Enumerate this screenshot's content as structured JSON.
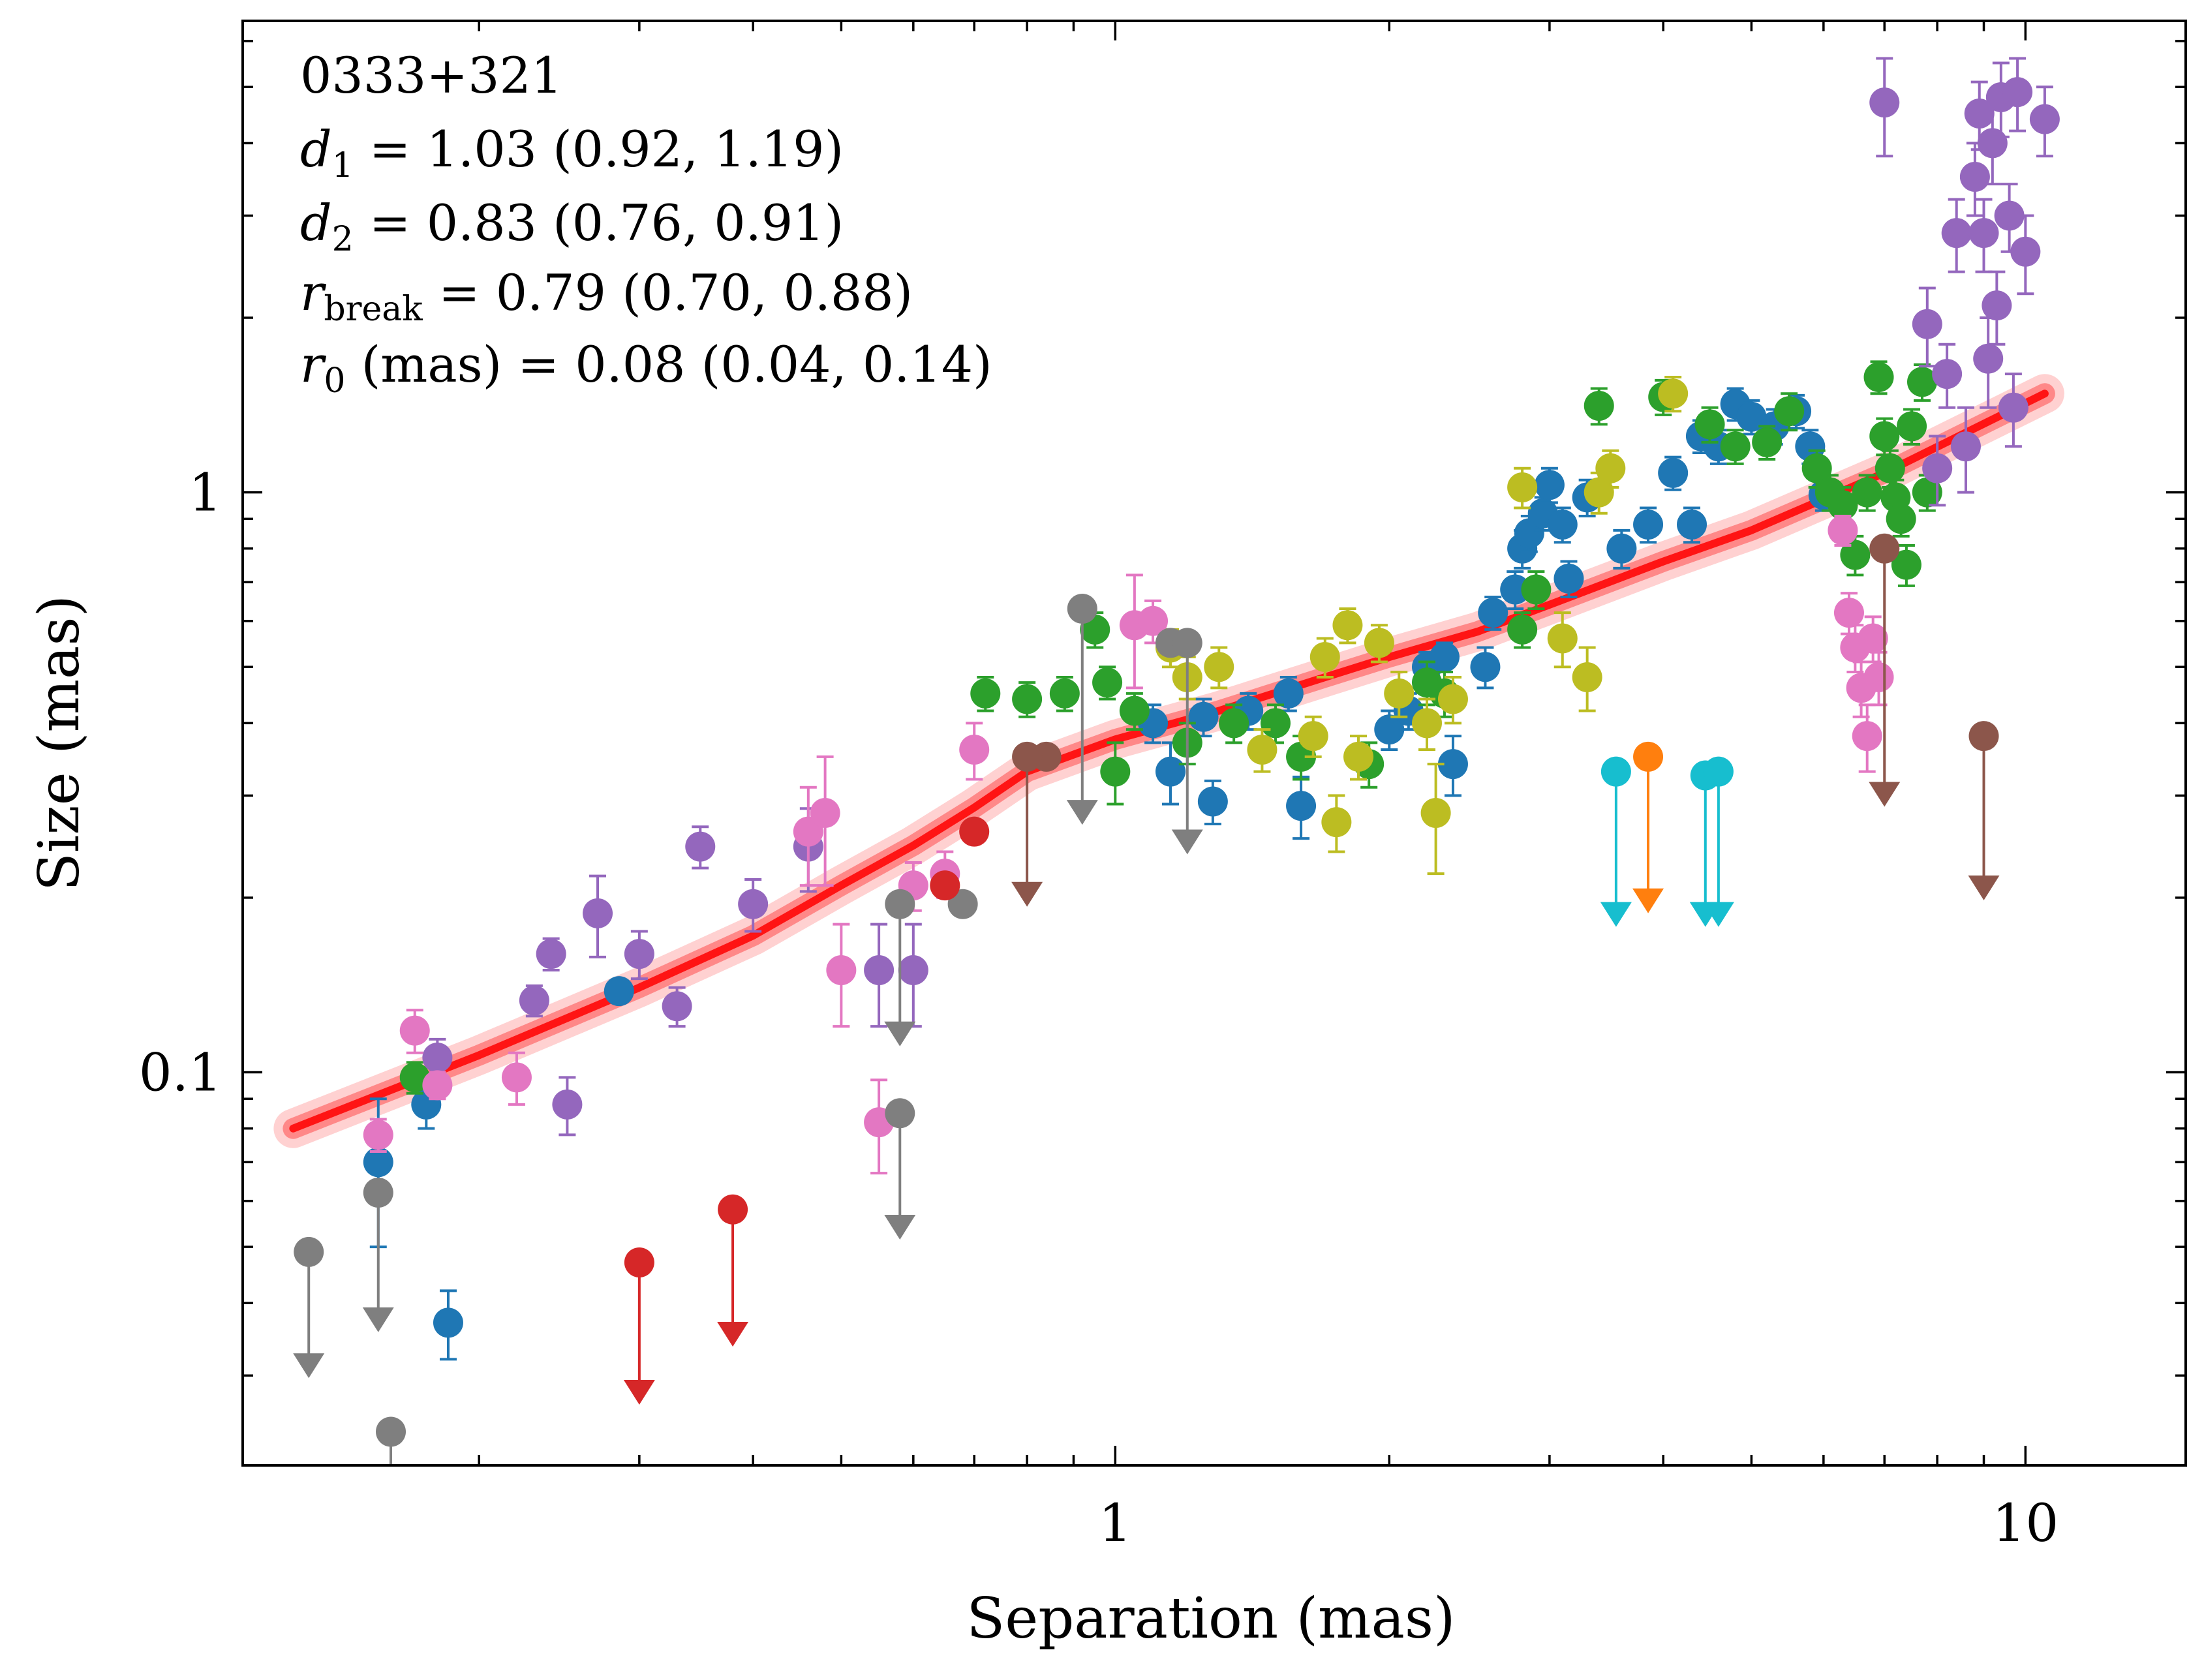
{
  "chart_data": {
    "type": "scatter",
    "title": "",
    "xlabel": "Separation (mas)",
    "ylabel": "Size (mas)",
    "xscale": "log",
    "yscale": "log",
    "xlim": [
      0.11,
      15
    ],
    "ylim": [
      0.021,
      6.5
    ],
    "xticks": [
      {
        "value": 1,
        "label": "1"
      },
      {
        "value": 10,
        "label": "10"
      }
    ],
    "yticks": [
      {
        "value": 0.1,
        "label": "0.1"
      },
      {
        "value": 1,
        "label": "1"
      }
    ],
    "annotations": [
      {
        "lines": [
          {
            "text": "0333+321"
          }
        ]
      },
      {
        "lines": [
          {
            "text": "d",
            "sub": "1",
            "rest": " = 1.03 (0.92, 1.19)"
          }
        ]
      },
      {
        "lines": [
          {
            "text": "d",
            "sub": "2",
            "rest": " = 0.83 (0.76, 0.91)"
          }
        ]
      },
      {
        "lines": [
          {
            "text": "r",
            "sub": "break",
            "rest": " = 0.79 (0.70, 0.88)"
          }
        ]
      },
      {
        "lines": [
          {
            "text": "r",
            "sub": "0",
            "rest": " (mas) = 0.08 (0.04, 0.14)"
          }
        ]
      }
    ],
    "fit": {
      "name": "broken power-law fit",
      "color": "#ff0000",
      "r_break": 0.79,
      "points": [
        [
          0.125,
          0.08
        ],
        [
          0.2,
          0.107
        ],
        [
          0.3,
          0.14
        ],
        [
          0.4,
          0.172
        ],
        [
          0.5,
          0.21
        ],
        [
          0.6,
          0.246
        ],
        [
          0.7,
          0.286
        ],
        [
          0.8,
          0.33
        ],
        [
          1.0,
          0.375
        ],
        [
          1.3,
          0.42
        ],
        [
          1.7,
          0.48
        ],
        [
          2.0,
          0.52
        ],
        [
          2.5,
          0.575
        ],
        [
          3.0,
          0.64
        ],
        [
          4.0,
          0.76
        ],
        [
          5.0,
          0.86
        ],
        [
          7.0,
          1.08
        ],
        [
          10.5,
          1.48
        ]
      ]
    },
    "series": [
      {
        "name": "blue",
        "color": "#1f77b4",
        "points": [
          [
            0.155,
            0.07,
            0.02
          ],
          [
            0.175,
            0.088,
            0.008
          ],
          [
            0.185,
            0.037,
            0.005
          ],
          [
            0.285,
            0.138,
            0.005
          ],
          [
            1.1,
            0.4,
            0.03
          ],
          [
            1.15,
            0.33,
            0.04
          ],
          [
            1.25,
            0.41,
            0.03
          ],
          [
            1.28,
            0.293,
            0.025
          ],
          [
            1.4,
            0.42,
            0.03
          ],
          [
            1.55,
            0.45,
            0.03
          ],
          [
            1.6,
            0.288,
            0.035
          ],
          [
            2.0,
            0.39,
            0.03
          ],
          [
            2.1,
            0.42,
            0.03
          ],
          [
            2.2,
            0.5,
            0.03
          ],
          [
            2.3,
            0.52,
            0.03
          ],
          [
            2.35,
            0.34,
            0.04
          ],
          [
            2.55,
            0.5,
            0.04
          ],
          [
            2.6,
            0.62,
            0.04
          ],
          [
            2.75,
            0.68,
            0.05
          ],
          [
            2.8,
            0.8,
            0.06
          ],
          [
            2.85,
            0.85,
            0.06
          ],
          [
            2.95,
            0.92,
            0.06
          ],
          [
            3.0,
            1.03,
            0.07
          ],
          [
            3.1,
            0.88,
            0.06
          ],
          [
            3.15,
            0.71,
            0.05
          ],
          [
            3.3,
            0.98,
            0.07
          ],
          [
            3.6,
            0.8,
            0.06
          ],
          [
            3.85,
            0.88,
            0.06
          ],
          [
            4.1,
            1.08,
            0.07
          ],
          [
            4.3,
            0.88,
            0.06
          ],
          [
            4.4,
            1.25,
            0.08
          ],
          [
            4.6,
            1.2,
            0.08
          ],
          [
            4.8,
            1.42,
            0.09
          ],
          [
            5.0,
            1.35,
            0.09
          ],
          [
            5.3,
            1.3,
            0.09
          ],
          [
            5.6,
            1.38,
            0.09
          ],
          [
            5.8,
            1.2,
            0.08
          ],
          [
            6.0,
            0.99,
            0.06
          ]
        ]
      },
      {
        "name": "green",
        "color": "#2ca02c",
        "points": [
          [
            0.17,
            0.098,
            0.006
          ],
          [
            0.72,
            0.45,
            0.03
          ],
          [
            0.8,
            0.44,
            0.03
          ],
          [
            0.88,
            0.45,
            0.03
          ],
          [
            0.95,
            0.58,
            0.04
          ],
          [
            0.98,
            0.47,
            0.03
          ],
          [
            1.0,
            0.33,
            0.04
          ],
          [
            1.05,
            0.42,
            0.03
          ],
          [
            1.2,
            0.37,
            0.03
          ],
          [
            1.35,
            0.4,
            0.03
          ],
          [
            1.5,
            0.4,
            0.03
          ],
          [
            1.6,
            0.35,
            0.03
          ],
          [
            1.9,
            0.34,
            0.03
          ],
          [
            2.2,
            0.47,
            0.04
          ],
          [
            2.3,
            0.45,
            0.04
          ],
          [
            2.8,
            0.58,
            0.04
          ],
          [
            2.9,
            0.68,
            0.05
          ],
          [
            3.4,
            1.41,
            0.1
          ],
          [
            4.0,
            1.46,
            0.1
          ],
          [
            4.5,
            1.31,
            0.09
          ],
          [
            4.8,
            1.2,
            0.08
          ],
          [
            5.2,
            1.22,
            0.08
          ],
          [
            5.5,
            1.38,
            0.1
          ],
          [
            5.9,
            1.1,
            0.08
          ],
          [
            6.1,
            1.0,
            0.07
          ],
          [
            6.3,
            0.95,
            0.07
          ],
          [
            6.5,
            0.78,
            0.06
          ],
          [
            6.7,
            1.0,
            0.07
          ],
          [
            6.9,
            1.58,
            0.1
          ],
          [
            7.0,
            1.25,
            0.09
          ],
          [
            7.1,
            1.1,
            0.08
          ],
          [
            7.2,
            0.98,
            0.07
          ],
          [
            7.3,
            0.9,
            0.06
          ],
          [
            7.4,
            0.75,
            0.06
          ],
          [
            7.5,
            1.3,
            0.09
          ],
          [
            7.7,
            1.55,
            0.11
          ],
          [
            7.8,
            1.0,
            0.07
          ]
        ]
      },
      {
        "name": "yellow",
        "color": "#bcbd22",
        "points": [
          [
            1.15,
            0.54,
            0.04
          ],
          [
            1.2,
            0.48,
            0.04
          ],
          [
            1.3,
            0.5,
            0.04
          ],
          [
            1.45,
            0.36,
            0.03
          ],
          [
            1.65,
            0.38,
            0.03
          ],
          [
            1.7,
            0.52,
            0.04
          ],
          [
            1.75,
            0.27,
            0.03
          ],
          [
            1.8,
            0.59,
            0.04
          ],
          [
            1.85,
            0.35,
            0.03
          ],
          [
            1.95,
            0.55,
            0.04
          ],
          [
            2.05,
            0.45,
            0.04
          ],
          [
            2.2,
            0.4,
            0.04
          ],
          [
            2.25,
            0.28,
            0.06
          ],
          [
            2.35,
            0.44,
            0.04
          ],
          [
            2.8,
            1.02,
            0.08
          ],
          [
            3.1,
            0.56,
            0.06
          ],
          [
            3.3,
            0.48,
            0.06
          ],
          [
            3.4,
            1.0,
            0.08
          ],
          [
            3.5,
            1.1,
            0.08
          ],
          [
            4.1,
            1.48,
            0.1
          ]
        ]
      },
      {
        "name": "purple",
        "color": "#9467bd",
        "points": [
          [
            0.18,
            0.106,
            0.008
          ],
          [
            0.23,
            0.133,
            0.008
          ],
          [
            0.24,
            0.16,
            0.01
          ],
          [
            0.25,
            0.088,
            0.01
          ],
          [
            0.27,
            0.188,
            0.03
          ],
          [
            0.3,
            0.16,
            0.015
          ],
          [
            0.33,
            0.13,
            0.01
          ],
          [
            0.35,
            0.245,
            0.02
          ],
          [
            0.4,
            0.195,
            0.02
          ],
          [
            0.46,
            0.245,
            0.04
          ],
          [
            0.55,
            0.15,
            0.03
          ],
          [
            0.6,
            0.15,
            0.03
          ],
          [
            7.0,
            4.7,
            0.9
          ],
          [
            7.8,
            1.95,
            0.3
          ],
          [
            8.0,
            1.1,
            0.15
          ],
          [
            8.2,
            1.6,
            0.2
          ],
          [
            8.4,
            2.8,
            0.4
          ],
          [
            8.6,
            1.2,
            0.2
          ],
          [
            8.8,
            3.5,
            0.5
          ],
          [
            8.9,
            4.5,
            0.6
          ],
          [
            9.0,
            2.8,
            0.4
          ],
          [
            9.1,
            1.7,
            0.3
          ],
          [
            9.2,
            4.0,
            0.6
          ],
          [
            9.3,
            2.1,
            0.3
          ],
          [
            9.4,
            4.8,
            0.7
          ],
          [
            9.6,
            3.0,
            0.4
          ],
          [
            9.7,
            1.4,
            0.2
          ],
          [
            9.8,
            4.9,
            0.7
          ],
          [
            10.0,
            2.6,
            0.4
          ],
          [
            10.5,
            4.4,
            0.6
          ]
        ]
      },
      {
        "name": "pink",
        "color": "#e377c2",
        "points": [
          [
            0.155,
            0.078,
            0.005
          ],
          [
            0.17,
            0.118,
            0.01
          ],
          [
            0.18,
            0.095,
            0.005
          ],
          [
            0.22,
            0.098,
            0.01
          ],
          [
            0.46,
            0.26,
            0.05
          ],
          [
            0.48,
            0.28,
            0.07
          ],
          [
            0.5,
            0.15,
            0.03
          ],
          [
            0.55,
            0.082,
            0.015
          ],
          [
            0.6,
            0.21,
            0.02
          ],
          [
            0.65,
            0.22,
            0.02
          ],
          [
            0.7,
            0.36,
            0.04
          ],
          [
            1.05,
            0.59,
            0.13
          ],
          [
            1.1,
            0.6,
            0.05
          ],
          [
            6.3,
            0.86,
            0.05
          ],
          [
            6.4,
            0.62,
            0.05
          ],
          [
            6.5,
            0.54,
            0.05
          ],
          [
            6.6,
            0.46,
            0.05
          ],
          [
            6.7,
            0.38,
            0.05
          ],
          [
            6.8,
            0.56,
            0.05
          ],
          [
            6.9,
            0.48,
            0.05
          ]
        ]
      },
      {
        "name": "grey",
        "color": "#7f7f7f",
        "points": [
          [
            0.68,
            0.195,
            0.0
          ],
          [
            1.15,
            0.55,
            0.0
          ]
        ]
      },
      {
        "name": "brown",
        "color": "#8c564b",
        "points": [
          [
            0.84,
            0.35,
            0.0
          ]
        ]
      },
      {
        "name": "red-point",
        "color": "#d62728",
        "points": [
          [
            0.65,
            0.21,
            0.0
          ],
          [
            0.7,
            0.26,
            0.0
          ]
        ]
      }
    ],
    "upper_limits": [
      {
        "color": "#7f7f7f",
        "x": 0.13,
        "y": 0.049,
        "to": 0.03
      },
      {
        "color": "#7f7f7f",
        "x": 0.155,
        "y": 0.062,
        "to": 0.036
      },
      {
        "color": "#7f7f7f",
        "x": 0.16,
        "y": 0.024,
        "to": 0.021
      },
      {
        "color": "#7f7f7f",
        "x": 0.58,
        "y": 0.085,
        "to": 0.052
      },
      {
        "color": "#7f7f7f",
        "x": 0.58,
        "y": 0.195,
        "to": 0.112
      },
      {
        "color": "#7f7f7f",
        "x": 0.92,
        "y": 0.63,
        "to": 0.27
      },
      {
        "color": "#7f7f7f",
        "x": 1.2,
        "y": 0.55,
        "to": 0.24
      },
      {
        "color": "#d62728",
        "x": 0.3,
        "y": 0.047,
        "to": 0.027
      },
      {
        "color": "#d62728",
        "x": 0.38,
        "y": 0.058,
        "to": 0.034
      },
      {
        "color": "#8c564b",
        "x": 0.8,
        "y": 0.35,
        "to": 0.195
      },
      {
        "color": "#8c564b",
        "x": 7.0,
        "y": 0.8,
        "to": 0.29
      },
      {
        "color": "#8c564b",
        "x": 9.0,
        "y": 0.38,
        "to": 0.2
      },
      {
        "color": "#17becf",
        "x": 3.55,
        "y": 0.33,
        "to": 0.18
      },
      {
        "color": "#ff7f0e",
        "x": 3.85,
        "y": 0.35,
        "to": 0.19
      },
      {
        "color": "#17becf",
        "x": 4.45,
        "y": 0.325,
        "to": 0.18
      },
      {
        "color": "#17becf",
        "x": 4.6,
        "y": 0.33,
        "to": 0.18
      }
    ]
  }
}
